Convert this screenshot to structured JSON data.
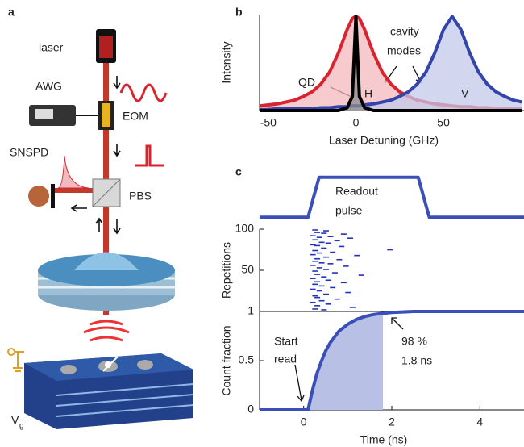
{
  "panel_labels": [
    "a",
    "b",
    "c"
  ],
  "diagram": {
    "laser": "laser",
    "awg": "AWG",
    "eom": "EOM",
    "snspd": "SNSPD",
    "pbs": "PBS",
    "vg": "V",
    "vg_sub": "g"
  },
  "chart_data": [
    {
      "type": "line",
      "ylabel": "Intensity",
      "xlabel": "Laser Detuning (GHz)",
      "xlim": [
        -55,
        96
      ],
      "ylim": [
        0,
        1.02
      ],
      "xticks": [
        -50,
        0,
        50
      ],
      "x": [
        -55,
        -50,
        -45,
        -40,
        -35,
        -30,
        -25,
        -20,
        -15,
        -10,
        -5,
        -2,
        0,
        2,
        5,
        10,
        15,
        20,
        25,
        30,
        35,
        40,
        45,
        50,
        55,
        60,
        65,
        70,
        75,
        80,
        85,
        90,
        95
      ],
      "series": [
        {
          "name": "H",
          "color": "#d9232e",
          "fill": "#f4b9bd",
          "values": [
            0.05,
            0.06,
            0.07,
            0.09,
            0.11,
            0.15,
            0.2,
            0.28,
            0.41,
            0.61,
            0.86,
            0.98,
            1,
            0.98,
            0.86,
            0.61,
            0.41,
            0.28,
            0.2,
            0.15,
            0.11,
            0.09,
            0.07,
            0.06,
            0.05,
            0.04,
            0.04,
            0.03,
            0.03,
            0.02,
            0.02,
            0.02,
            0.02
          ]
        },
        {
          "name": "V",
          "color": "#3344aa",
          "fill": "#c3c8ea",
          "values": [
            0.01,
            0.01,
            0.02,
            0.02,
            0.02,
            0.02,
            0.02,
            0.03,
            0.03,
            0.04,
            0.04,
            0.05,
            0.05,
            0.05,
            0.06,
            0.07,
            0.09,
            0.11,
            0.15,
            0.2,
            0.28,
            0.41,
            0.61,
            0.86,
            1,
            0.86,
            0.61,
            0.41,
            0.28,
            0.2,
            0.15,
            0.11,
            0.09
          ]
        },
        {
          "name": "QD",
          "color": "#000000",
          "fill": "#8c8c8c",
          "values": [
            0,
            0,
            0,
            0,
            0,
            0,
            0,
            0,
            0,
            0,
            0.03,
            0.15,
            1,
            0.15,
            0.03,
            0,
            0,
            0,
            0,
            0,
            0,
            0,
            0,
            0,
            0,
            0,
            0,
            0,
            0,
            0,
            0,
            0,
            0
          ]
        }
      ],
      "annotations": [
        "cavity",
        "modes"
      ]
    },
    {
      "type": "line",
      "xlim": [
        -1,
        5
      ],
      "ylim": [
        -0.3,
        1.4
      ],
      "x": [
        -1,
        0.1,
        0.35,
        2.6,
        2.85,
        5
      ],
      "values": [
        0,
        0,
        1,
        1,
        0,
        0
      ],
      "color": "#3a4fb8",
      "annotations": [
        "Readout",
        "pulse"
      ]
    },
    {
      "type": "scatter",
      "ylabel": "Repetitions",
      "xlim": [
        -1,
        5
      ],
      "ylim": [
        0,
        100
      ],
      "yticks": [
        50,
        100
      ],
      "color": "#2233bb",
      "x": [
        0.25,
        0.5,
        0.3,
        0.45,
        0.9,
        0.2,
        0.6,
        0.35,
        1.05,
        0.25,
        0.75,
        0.4,
        0.55,
        0.2,
        0.3,
        0.85,
        0.45,
        1.95,
        0.25,
        0.65,
        0.35,
        0.2,
        1.2,
        0.5,
        0.3,
        0.8,
        0.25,
        0.4,
        0.6,
        0.2,
        0.95,
        0.35,
        0.5,
        0.25,
        0.7,
        0.3,
        1.3,
        0.45,
        0.2,
        0.55,
        0.3,
        0.9,
        0.25,
        0.4,
        0.65,
        0.2,
        0.35,
        1.0,
        0.5,
        0.25,
        0.3,
        0.75,
        0.4,
        0.2,
        0.55,
        0.3,
        1.1,
        0.25,
        0.45
      ],
      "values": [
        99,
        98,
        96,
        95,
        94,
        92,
        91,
        90,
        89,
        87,
        86,
        84,
        83,
        81,
        80,
        79,
        77,
        75,
        74,
        72,
        71,
        69,
        68,
        66,
        64,
        63,
        61,
        59,
        58,
        56,
        55,
        53,
        51,
        49,
        47,
        45,
        44,
        42,
        40,
        38,
        36,
        35,
        33,
        31,
        29,
        27,
        25,
        23,
        21,
        19,
        17,
        15,
        13,
        11,
        9,
        7,
        5,
        3,
        2
      ]
    },
    {
      "type": "line",
      "ylabel": "Count fraction",
      "xlabel": "Time (ns)",
      "xlim": [
        -1,
        5
      ],
      "ylim": [
        0,
        1
      ],
      "xticks": [
        0,
        2,
        4
      ],
      "yticks": [
        0,
        0.5,
        1
      ],
      "color": "#3a4fb8",
      "shade_color": "#b9c0e6",
      "shade_to": 1.8,
      "x": [
        -1,
        0,
        0.1,
        0.2,
        0.3,
        0.4,
        0.5,
        0.6,
        0.8,
        1.0,
        1.2,
        1.4,
        1.6,
        1.8,
        2.0,
        2.5,
        3,
        4,
        5
      ],
      "values": [
        0,
        0,
        0,
        0.2,
        0.37,
        0.49,
        0.6,
        0.68,
        0.8,
        0.87,
        0.92,
        0.95,
        0.97,
        0.98,
        0.99,
        1,
        1,
        1,
        1
      ],
      "annotations": [
        "Start",
        "read",
        "98 %",
        "1.8 ns"
      ]
    }
  ]
}
